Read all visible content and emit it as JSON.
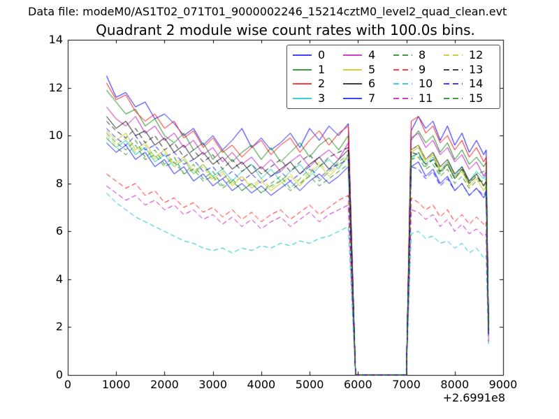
{
  "header": {
    "data_file": "Data file: modeM0/AS1T02_071T01_9000002246_15214cztM0_level2_quad_clean.evt"
  },
  "chart_data": {
    "type": "line",
    "title": "Quadrant 2 module wise count rates with 100.0s bins.",
    "xlabel": "",
    "ylabel": "",
    "xlim": [
      0,
      9000
    ],
    "ylim": [
      0,
      14
    ],
    "xticks": [
      0,
      1000,
      2000,
      3000,
      4000,
      5000,
      6000,
      7000,
      8000,
      9000
    ],
    "yticks": [
      0,
      2,
      4,
      6,
      8,
      10,
      12,
      14
    ],
    "x_offset_label": "+2.6991e8",
    "grid": false,
    "legend_position": "upper center-right inside axes, 4 columns, column-major",
    "x": [
      800,
      1000,
      1200,
      1400,
      1600,
      1800,
      2000,
      2200,
      2400,
      2600,
      2800,
      3000,
      3200,
      3400,
      3600,
      3800,
      4000,
      4200,
      4400,
      4600,
      4800,
      5000,
      5200,
      5400,
      5600,
      5800,
      5950,
      7000,
      7100,
      7250,
      7400,
      7550,
      7700,
      7850,
      8000,
      8150,
      8300,
      8450,
      8600,
      8650,
      8700
    ],
    "series": [
      {
        "name": "0",
        "color": "#0000ff",
        "style": "solid",
        "values": [
          12.5,
          11.6,
          11.8,
          11.2,
          11.4,
          10.7,
          10.9,
          10.5,
          10.0,
          10.3,
          9.6,
          10.0,
          9.4,
          9.8,
          10.3,
          9.5,
          9.9,
          9.4,
          9.7,
          10.1,
          9.5,
          10.3,
          9.8,
          10.4,
          10.0,
          10.5,
          0,
          0,
          10.2,
          10.8,
          10.3,
          10.6,
          9.8,
          10.4,
          9.6,
          10.1,
          9.3,
          9.8,
          9.2,
          9.4,
          1.9
        ]
      },
      {
        "name": "1",
        "color": "#007f00",
        "style": "solid",
        "values": [
          11.9,
          11.4,
          10.9,
          11.1,
          10.4,
          10.7,
          10.0,
          9.7,
          10.1,
          9.4,
          9.7,
          9.0,
          9.4,
          8.9,
          9.3,
          9.6,
          9.0,
          9.5,
          8.9,
          9.3,
          9.7,
          9.1,
          9.6,
          9.9,
          9.4,
          10.0,
          0,
          0,
          9.8,
          10.2,
          9.7,
          10.0,
          9.3,
          9.7,
          9.0,
          9.4,
          8.8,
          9.1,
          8.7,
          8.9,
          1.9
        ]
      },
      {
        "name": "2",
        "color": "#ff0000",
        "style": "solid",
        "values": [
          12.2,
          11.5,
          11.7,
          11.0,
          10.6,
          10.9,
          10.3,
          10.6,
          9.9,
          10.2,
          9.5,
          9.9,
          9.3,
          9.6,
          9.1,
          9.5,
          9.8,
          9.2,
          9.6,
          9.9,
          9.3,
          9.8,
          10.2,
          9.6,
          10.1,
          10.4,
          0,
          0,
          10.6,
          10.8,
          10.1,
          10.4,
          9.7,
          10.0,
          9.4,
          9.8,
          9.1,
          9.5,
          8.9,
          9.1,
          1.9
        ]
      },
      {
        "name": "3",
        "color": "#00bfbf",
        "style": "solid",
        "values": [
          9.9,
          9.5,
          9.8,
          9.2,
          9.5,
          8.9,
          9.2,
          8.7,
          9.0,
          8.4,
          8.8,
          8.3,
          8.6,
          8.1,
          8.5,
          8.8,
          8.2,
          8.6,
          8.1,
          8.5,
          8.8,
          8.3,
          8.7,
          9.0,
          8.6,
          9.2,
          0,
          0,
          9.0,
          9.3,
          8.8,
          9.1,
          8.5,
          8.9,
          8.3,
          8.7,
          8.1,
          8.5,
          8.2,
          8.4,
          1.8
        ]
      },
      {
        "name": "4",
        "color": "#bf00bf",
        "style": "solid",
        "values": [
          11.2,
          10.7,
          10.4,
          10.8,
          10.1,
          10.4,
          9.8,
          10.1,
          9.5,
          9.8,
          9.2,
          9.5,
          8.9,
          9.3,
          8.8,
          9.1,
          8.6,
          9.0,
          8.5,
          8.9,
          9.2,
          8.7,
          9.1,
          9.4,
          9.0,
          9.7,
          0,
          0,
          9.9,
          10.1,
          9.5,
          9.8,
          9.2,
          9.5,
          8.9,
          9.2,
          8.6,
          8.9,
          8.3,
          8.5,
          1.8
        ]
      },
      {
        "name": "5",
        "color": "#bfbf00",
        "style": "solid",
        "values": [
          10.2,
          9.8,
          10.1,
          9.4,
          9.7,
          9.1,
          9.4,
          8.8,
          9.1,
          8.5,
          8.8,
          8.2,
          8.5,
          7.9,
          8.3,
          7.8,
          8.1,
          7.7,
          8.0,
          8.3,
          7.9,
          8.4,
          8.8,
          8.3,
          8.7,
          9.1,
          0,
          0,
          9.3,
          9.5,
          8.9,
          9.2,
          8.5,
          8.8,
          8.2,
          8.5,
          7.9,
          8.2,
          7.7,
          7.9,
          1.7
        ]
      },
      {
        "name": "6",
        "color": "#000000",
        "style": "solid",
        "values": [
          10.8,
          10.3,
          10.6,
          10.0,
          10.2,
          9.6,
          9.9,
          9.3,
          9.6,
          9.0,
          9.3,
          8.8,
          9.1,
          8.6,
          8.9,
          8.4,
          8.7,
          8.3,
          8.6,
          8.9,
          8.4,
          8.8,
          9.1,
          8.6,
          9.0,
          9.4,
          0,
          0,
          9.4,
          9.6,
          9.0,
          9.3,
          8.7,
          9.0,
          8.4,
          8.7,
          8.1,
          8.4,
          7.9,
          8.1,
          1.8
        ]
      },
      {
        "name": "7",
        "color": "#0000ff",
        "style": "solid",
        "values": [
          9.7,
          9.3,
          9.6,
          9.0,
          9.3,
          8.7,
          9.0,
          8.4,
          8.7,
          8.1,
          8.4,
          7.9,
          8.2,
          7.7,
          8.0,
          7.6,
          7.9,
          7.5,
          7.8,
          8.1,
          7.7,
          8.1,
          8.4,
          8.0,
          8.3,
          8.7,
          0,
          0,
          8.7,
          8.9,
          8.3,
          8.6,
          8.0,
          8.3,
          7.7,
          8.0,
          7.5,
          7.8,
          7.4,
          7.6,
          1.7
        ]
      },
      {
        "name": "8",
        "color": "#007f00",
        "style": "dashed",
        "values": [
          10.1,
          9.7,
          9.4,
          9.8,
          9.1,
          9.4,
          8.8,
          9.1,
          8.4,
          8.8,
          8.2,
          8.5,
          7.9,
          8.2,
          7.7,
          8.0,
          7.6,
          8.0,
          8.3,
          7.8,
          8.2,
          8.6,
          8.1,
          8.5,
          8.9,
          9.2,
          0,
          0,
          9.1,
          9.3,
          8.7,
          9.0,
          8.4,
          8.8,
          8.2,
          8.6,
          8.0,
          8.4,
          8.5,
          8.6,
          1.8
        ]
      },
      {
        "name": "9",
        "color": "#ff0000",
        "style": "dashed",
        "values": [
          8.4,
          8.1,
          7.8,
          8.0,
          7.5,
          7.7,
          7.2,
          7.4,
          7.0,
          7.2,
          6.8,
          7.0,
          6.6,
          6.9,
          6.5,
          6.8,
          6.4,
          6.7,
          6.9,
          6.5,
          6.8,
          7.1,
          6.7,
          7.0,
          7.3,
          7.5,
          0,
          0,
          7.4,
          7.2,
          6.9,
          7.1,
          6.6,
          6.9,
          6.4,
          6.7,
          6.3,
          6.6,
          6.3,
          6.4,
          1.5
        ]
      },
      {
        "name": "10",
        "color": "#00bfbf",
        "style": "dashed",
        "values": [
          7.6,
          7.2,
          6.9,
          6.6,
          6.4,
          6.2,
          6.0,
          5.8,
          5.6,
          5.5,
          5.3,
          5.2,
          5.3,
          5.1,
          5.3,
          5.2,
          5.4,
          5.3,
          5.5,
          5.4,
          5.6,
          5.5,
          5.7,
          5.8,
          6.0,
          6.2,
          0,
          0,
          5.9,
          6.0,
          5.7,
          5.8,
          5.5,
          5.6,
          5.3,
          5.5,
          5.1,
          5.3,
          4.9,
          5.0,
          1.2
        ]
      },
      {
        "name": "11",
        "color": "#bf00bf",
        "style": "dashed",
        "values": [
          7.9,
          7.6,
          7.3,
          7.5,
          7.1,
          7.3,
          6.9,
          7.1,
          6.7,
          6.9,
          6.5,
          6.7,
          6.3,
          6.6,
          6.2,
          6.5,
          6.1,
          6.4,
          6.6,
          6.2,
          6.5,
          6.8,
          6.4,
          6.7,
          6.9,
          7.1,
          0,
          0,
          6.9,
          6.8,
          6.5,
          6.7,
          6.2,
          6.5,
          6.0,
          6.3,
          5.9,
          6.1,
          5.8,
          5.9,
          1.4
        ]
      },
      {
        "name": "12",
        "color": "#bfbf00",
        "style": "dashed",
        "values": [
          10.0,
          9.6,
          9.9,
          9.3,
          9.6,
          9.0,
          9.3,
          8.7,
          9.0,
          8.4,
          8.7,
          8.1,
          8.4,
          8.0,
          8.3,
          7.9,
          8.2,
          7.8,
          8.1,
          8.4,
          8.0,
          8.5,
          8.9,
          8.4,
          8.8,
          9.1,
          0,
          0,
          9.4,
          9.6,
          9.0,
          9.2,
          8.6,
          8.9,
          8.3,
          8.6,
          8.0,
          8.3,
          7.9,
          8.1,
          1.7
        ]
      },
      {
        "name": "13",
        "color": "#000000",
        "style": "dashed",
        "values": [
          10.6,
          10.2,
          9.9,
          10.3,
          9.7,
          10.0,
          9.4,
          9.7,
          9.1,
          9.4,
          8.9,
          9.2,
          8.6,
          9.0,
          8.5,
          8.8,
          8.4,
          8.7,
          9.0,
          8.5,
          8.9,
          9.2,
          8.7,
          9.1,
          9.3,
          9.5,
          0,
          0,
          9.3,
          9.2,
          8.8,
          9.0,
          8.5,
          8.8,
          8.2,
          8.6,
          8.0,
          8.3,
          7.9,
          8.1,
          1.8
        ]
      },
      {
        "name": "14",
        "color": "#0000ff",
        "style": "dashed",
        "values": [
          10.3,
          9.9,
          9.6,
          10.0,
          9.4,
          9.6,
          9.1,
          9.3,
          8.8,
          9.0,
          8.5,
          8.7,
          8.2,
          8.5,
          8.1,
          8.4,
          8.0,
          8.3,
          8.5,
          8.1,
          8.4,
          8.7,
          8.2,
          8.6,
          8.8,
          9.0,
          0,
          0,
          8.7,
          8.6,
          8.2,
          8.5,
          7.9,
          8.2,
          7.7,
          8.0,
          7.5,
          7.8,
          7.5,
          7.7,
          1.7
        ]
      },
      {
        "name": "15",
        "color": "#007f00",
        "style": "dashed",
        "values": [
          9.9,
          9.5,
          9.2,
          9.6,
          9.0,
          9.2,
          8.7,
          8.9,
          8.4,
          8.6,
          8.1,
          8.3,
          7.8,
          8.1,
          7.7,
          8.0,
          7.6,
          7.9,
          8.1,
          7.7,
          8.0,
          8.3,
          7.9,
          8.2,
          8.5,
          8.8,
          0,
          0,
          9.0,
          9.1,
          8.6,
          8.8,
          8.3,
          8.6,
          8.0,
          8.3,
          7.8,
          8.1,
          8.1,
          8.2,
          1.8
        ]
      }
    ],
    "legend": {
      "columns": 4,
      "rows": 4,
      "labels": [
        "0",
        "1",
        "2",
        "3",
        "4",
        "5",
        "6",
        "7",
        "8",
        "9",
        "10",
        "11",
        "12",
        "13",
        "14",
        "15"
      ]
    }
  }
}
